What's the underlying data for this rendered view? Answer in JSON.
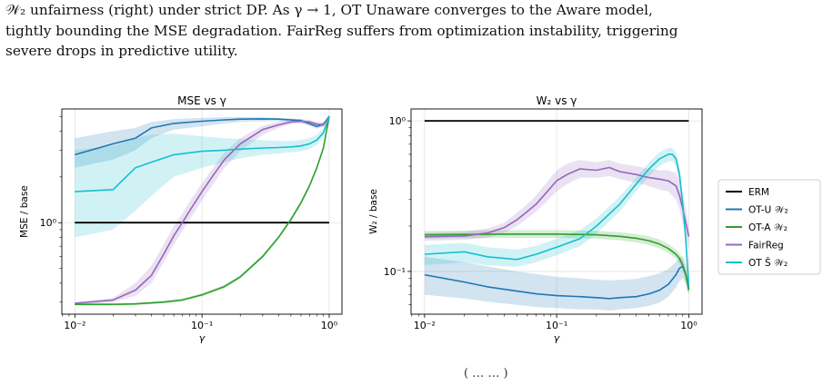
{
  "caption": {
    "lines": [
      "𝒲₂ unfairness (right) under strict DP. As γ → 1, OT Unaware converges to the Aware model,",
      "tightly bounding the MSE degradation. FairReg suffers from optimization instability, triggering",
      "severe drops in predictive utility."
    ]
  },
  "footer_fragment": "( … … )",
  "colors": {
    "ERM": "#000000",
    "OT-U": "#1f77b4",
    "OT-A": "#2ca02c",
    "FairReg": "#9467bd",
    "OTS": "#17becf"
  },
  "legend": {
    "placement": "right",
    "entries": [
      "ERM",
      "OT-U 𝒲₂",
      "OT-A 𝒲₂",
      "FairReg",
      "OT Ŝ 𝒲₂"
    ]
  },
  "chart_data": [
    {
      "type": "line",
      "title": "MSE vs γ",
      "xlabel": "γ",
      "ylabel": "MSE / base",
      "xscale": "log",
      "yscale": "log",
      "xlim": [
        0.0079,
        1.26
      ],
      "ylim": [
        0.25,
        5.6
      ],
      "grid": true,
      "xticks": [
        {
          "v": 0.01,
          "label": "10⁻²"
        },
        {
          "v": 0.1,
          "label": "10⁻¹"
        },
        {
          "v": 1,
          "label": "10⁰"
        }
      ],
      "yticks": [
        {
          "v": 1,
          "label": "10⁰"
        }
      ],
      "series": [
        {
          "name": "ERM",
          "x": [
            0.01,
            1.0
          ],
          "y": [
            1.0,
            1.0
          ]
        },
        {
          "name": "OT-U 𝒲₂",
          "x": [
            0.01,
            0.02,
            0.03,
            0.04,
            0.06,
            0.1,
            0.15,
            0.2,
            0.3,
            0.4,
            0.6,
            0.8,
            0.9,
            1.0
          ],
          "y": [
            2.8,
            3.3,
            3.6,
            4.2,
            4.5,
            4.65,
            4.75,
            4.8,
            4.82,
            4.8,
            4.7,
            4.3,
            4.45,
            5.0
          ],
          "band_low": [
            2.3,
            2.6,
            3.0,
            3.6,
            4.1,
            4.3,
            4.5,
            4.6,
            4.65,
            4.65,
            4.55,
            4.15,
            4.3,
            4.9
          ],
          "band_high": [
            3.6,
            4.0,
            4.2,
            4.6,
            4.8,
            4.9,
            4.95,
            4.95,
            4.95,
            4.9,
            4.8,
            4.45,
            4.55,
            5.1
          ]
        },
        {
          "name": "OT-A 𝒲₂",
          "x": [
            0.01,
            0.02,
            0.03,
            0.05,
            0.07,
            0.1,
            0.15,
            0.2,
            0.3,
            0.4,
            0.5,
            0.6,
            0.7,
            0.8,
            0.9,
            1.0
          ],
          "y": [
            0.29,
            0.29,
            0.292,
            0.3,
            0.31,
            0.335,
            0.38,
            0.44,
            0.6,
            0.8,
            1.05,
            1.35,
            1.75,
            2.3,
            3.1,
            5.0
          ],
          "band_low": [
            0.285,
            0.285,
            0.287,
            0.295,
            0.305,
            0.328,
            0.37,
            0.43,
            0.585,
            0.78,
            1.02,
            1.31,
            1.7,
            2.24,
            3.0,
            4.85
          ],
          "band_high": [
            0.296,
            0.296,
            0.298,
            0.306,
            0.317,
            0.342,
            0.39,
            0.45,
            0.615,
            0.82,
            1.08,
            1.39,
            1.8,
            2.36,
            3.2,
            5.15
          ]
        },
        {
          "name": "FairReg",
          "x": [
            0.01,
            0.02,
            0.03,
            0.04,
            0.05,
            0.06,
            0.07,
            0.08,
            0.1,
            0.12,
            0.15,
            0.2,
            0.3,
            0.4,
            0.5,
            0.6,
            0.7,
            0.8,
            0.9,
            1.0
          ],
          "y": [
            0.295,
            0.31,
            0.36,
            0.45,
            0.62,
            0.82,
            1.0,
            1.2,
            1.6,
            2.0,
            2.6,
            3.3,
            4.1,
            4.4,
            4.6,
            4.65,
            4.6,
            4.45,
            4.4,
            5.0
          ],
          "band_low": [
            0.29,
            0.3,
            0.33,
            0.4,
            0.55,
            0.72,
            0.88,
            1.05,
            1.4,
            1.75,
            2.3,
            2.95,
            3.8,
            4.2,
            4.45,
            4.5,
            4.45,
            4.3,
            4.25,
            4.9
          ],
          "band_high": [
            0.3,
            0.32,
            0.4,
            0.52,
            0.72,
            0.95,
            1.15,
            1.38,
            1.82,
            2.25,
            2.9,
            3.6,
            4.35,
            4.6,
            4.75,
            4.8,
            4.75,
            4.6,
            4.55,
            5.1
          ]
        },
        {
          "name": "OT Ŝ 𝒲₂",
          "x": [
            0.01,
            0.02,
            0.03,
            0.04,
            0.06,
            0.1,
            0.15,
            0.2,
            0.3,
            0.4,
            0.5,
            0.6,
            0.7,
            0.8,
            0.9,
            1.0
          ],
          "y": [
            1.6,
            1.65,
            2.3,
            2.5,
            2.8,
            2.95,
            3.0,
            3.05,
            3.1,
            3.12,
            3.15,
            3.2,
            3.3,
            3.5,
            3.9,
            5.0
          ],
          "band_low": [
            0.8,
            0.9,
            1.2,
            1.5,
            2.0,
            2.3,
            2.5,
            2.65,
            2.8,
            2.85,
            2.9,
            2.95,
            3.05,
            3.25,
            3.65,
            4.85
          ],
          "band_high": [
            3.0,
            3.2,
            3.6,
            3.8,
            3.85,
            3.7,
            3.6,
            3.55,
            3.5,
            3.45,
            3.45,
            3.5,
            3.6,
            3.8,
            4.15,
            5.15
          ]
        }
      ]
    },
    {
      "type": "line",
      "title": "W₂ vs γ",
      "xlabel": "γ",
      "ylabel": "W₂ / base",
      "xscale": "log",
      "yscale": "log",
      "xlim": [
        0.0079,
        1.26
      ],
      "ylim": [
        0.052,
        1.2
      ],
      "grid": true,
      "xticks": [
        {
          "v": 0.01,
          "label": "10⁻²"
        },
        {
          "v": 0.1,
          "label": "10⁻¹"
        },
        {
          "v": 1,
          "label": "10⁰"
        }
      ],
      "yticks": [
        {
          "v": 0.1,
          "label": "10⁻¹"
        },
        {
          "v": 1,
          "label": "10⁰"
        }
      ],
      "series": [
        {
          "name": "ERM",
          "x": [
            0.01,
            1.0
          ],
          "y": [
            1.0,
            1.0
          ]
        },
        {
          "name": "OT-U 𝒲₂",
          "x": [
            0.01,
            0.02,
            0.03,
            0.05,
            0.07,
            0.1,
            0.15,
            0.2,
            0.25,
            0.3,
            0.4,
            0.5,
            0.6,
            0.7,
            0.8,
            0.85,
            0.9,
            0.95,
            1.0
          ],
          "y": [
            0.095,
            0.085,
            0.079,
            0.074,
            0.071,
            0.069,
            0.068,
            0.067,
            0.066,
            0.067,
            0.068,
            0.071,
            0.075,
            0.082,
            0.095,
            0.105,
            0.108,
            0.095,
            0.077
          ],
          "band_low": [
            0.07,
            0.066,
            0.063,
            0.06,
            0.058,
            0.057,
            0.056,
            0.056,
            0.055,
            0.056,
            0.057,
            0.059,
            0.062,
            0.068,
            0.078,
            0.086,
            0.09,
            0.082,
            0.07
          ],
          "band_high": [
            0.125,
            0.115,
            0.108,
            0.1,
            0.096,
            0.092,
            0.09,
            0.088,
            0.087,
            0.088,
            0.089,
            0.093,
            0.097,
            0.104,
            0.115,
            0.124,
            0.126,
            0.112,
            0.085
          ]
        },
        {
          "name": "OT-A 𝒲₂",
          "x": [
            0.01,
            0.02,
            0.05,
            0.1,
            0.15,
            0.2,
            0.3,
            0.4,
            0.5,
            0.6,
            0.7,
            0.8,
            0.85,
            0.9,
            0.95,
            1.0
          ],
          "y": [
            0.175,
            0.176,
            0.177,
            0.177,
            0.176,
            0.175,
            0.171,
            0.166,
            0.16,
            0.152,
            0.142,
            0.13,
            0.122,
            0.11,
            0.095,
            0.075
          ],
          "band_low": [
            0.165,
            0.166,
            0.167,
            0.167,
            0.166,
            0.165,
            0.161,
            0.156,
            0.15,
            0.142,
            0.133,
            0.121,
            0.113,
            0.102,
            0.088,
            0.07
          ],
          "band_high": [
            0.186,
            0.187,
            0.188,
            0.188,
            0.187,
            0.186,
            0.182,
            0.177,
            0.171,
            0.163,
            0.152,
            0.14,
            0.132,
            0.119,
            0.103,
            0.081
          ]
        },
        {
          "name": "FairReg",
          "x": [
            0.01,
            0.02,
            0.03,
            0.04,
            0.05,
            0.06,
            0.07,
            0.08,
            0.1,
            0.12,
            0.15,
            0.2,
            0.25,
            0.3,
            0.4,
            0.5,
            0.6,
            0.7,
            0.8,
            0.85,
            0.9,
            0.95,
            1.0
          ],
          "y": [
            0.17,
            0.172,
            0.18,
            0.195,
            0.22,
            0.25,
            0.28,
            0.32,
            0.4,
            0.44,
            0.48,
            0.47,
            0.49,
            0.46,
            0.44,
            0.42,
            0.41,
            0.4,
            0.37,
            0.32,
            0.26,
            0.21,
            0.17
          ],
          "band_low": [
            0.16,
            0.162,
            0.168,
            0.18,
            0.2,
            0.225,
            0.25,
            0.28,
            0.34,
            0.38,
            0.42,
            0.42,
            0.43,
            0.41,
            0.39,
            0.37,
            0.35,
            0.34,
            0.3,
            0.26,
            0.21,
            0.17,
            0.14
          ],
          "band_high": [
            0.18,
            0.183,
            0.193,
            0.21,
            0.245,
            0.28,
            0.32,
            0.37,
            0.47,
            0.52,
            0.55,
            0.53,
            0.55,
            0.52,
            0.5,
            0.48,
            0.47,
            0.47,
            0.45,
            0.4,
            0.33,
            0.26,
            0.2
          ]
        },
        {
          "name": "OT Ŝ 𝒲₂",
          "x": [
            0.01,
            0.02,
            0.03,
            0.05,
            0.07,
            0.1,
            0.15,
            0.2,
            0.3,
            0.4,
            0.5,
            0.6,
            0.7,
            0.75,
            0.8,
            0.85,
            0.9,
            0.95,
            1.0
          ],
          "y": [
            0.13,
            0.135,
            0.125,
            0.12,
            0.13,
            0.145,
            0.165,
            0.2,
            0.28,
            0.38,
            0.48,
            0.56,
            0.6,
            0.6,
            0.56,
            0.44,
            0.28,
            0.16,
            0.08
          ],
          "band_low": [
            0.11,
            0.115,
            0.11,
            0.107,
            0.115,
            0.128,
            0.147,
            0.178,
            0.25,
            0.34,
            0.43,
            0.5,
            0.54,
            0.54,
            0.5,
            0.39,
            0.24,
            0.14,
            0.072
          ],
          "band_high": [
            0.15,
            0.155,
            0.145,
            0.14,
            0.148,
            0.165,
            0.188,
            0.225,
            0.315,
            0.42,
            0.53,
            0.62,
            0.66,
            0.66,
            0.62,
            0.5,
            0.32,
            0.18,
            0.088
          ]
        }
      ]
    }
  ]
}
